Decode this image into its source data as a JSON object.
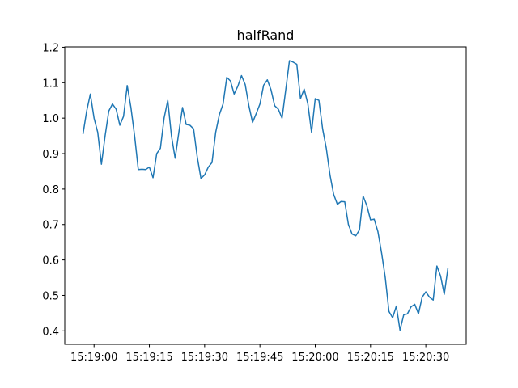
{
  "chart_data": {
    "type": "line",
    "title": "halfRand",
    "x": [
      "15:18:57",
      "15:18:58",
      "15:18:59",
      "15:19:00",
      "15:19:01",
      "15:19:02",
      "15:19:03",
      "15:19:04",
      "15:19:05",
      "15:19:06",
      "15:19:07",
      "15:19:08",
      "15:19:09",
      "15:19:10",
      "15:19:11",
      "15:19:12",
      "15:19:13",
      "15:19:14",
      "15:19:15",
      "15:19:16",
      "15:19:17",
      "15:19:18",
      "15:19:19",
      "15:19:20",
      "15:19:21",
      "15:19:22",
      "15:19:23",
      "15:19:24",
      "15:19:25",
      "15:19:26",
      "15:19:27",
      "15:19:28",
      "15:19:29",
      "15:19:30",
      "15:19:31",
      "15:19:32",
      "15:19:33",
      "15:19:34",
      "15:19:35",
      "15:19:36",
      "15:19:37",
      "15:19:38",
      "15:19:39",
      "15:19:40",
      "15:19:41",
      "15:19:42",
      "15:19:43",
      "15:19:44",
      "15:19:45",
      "15:19:46",
      "15:19:47",
      "15:19:48",
      "15:19:49",
      "15:19:50",
      "15:19:51",
      "15:19:52",
      "15:19:53",
      "15:19:54",
      "15:19:55",
      "15:19:56",
      "15:19:57",
      "15:19:58",
      "15:19:59",
      "15:20:00",
      "15:20:01",
      "15:20:02",
      "15:20:03",
      "15:20:04",
      "15:20:05",
      "15:20:06",
      "15:20:07",
      "15:20:08",
      "15:20:09",
      "15:20:10",
      "15:20:11",
      "15:20:12",
      "15:20:13",
      "15:20:14",
      "15:20:15",
      "15:20:16",
      "15:20:17",
      "15:20:18",
      "15:20:19",
      "15:20:20",
      "15:20:21",
      "15:20:22",
      "15:20:23",
      "15:20:24",
      "15:20:25",
      "15:20:26",
      "15:20:27",
      "15:20:28",
      "15:20:29",
      "15:20:30",
      "15:20:31",
      "15:20:32",
      "15:20:33",
      "15:20:34",
      "15:20:35",
      "15:20:36"
    ],
    "series": [
      {
        "color": "#1f77b4",
        "values": [
          0.955,
          1.02,
          1.068,
          1.0,
          0.96,
          0.87,
          0.95,
          1.02,
          1.04,
          1.025,
          0.98,
          1.005,
          1.092,
          1.03,
          0.95,
          0.855,
          0.856,
          0.855,
          0.862,
          0.832,
          0.9,
          0.915,
          1.0,
          1.05,
          0.95,
          0.887,
          0.96,
          1.03,
          0.982,
          0.98,
          0.97,
          0.89,
          0.83,
          0.84,
          0.862,
          0.875,
          0.96,
          1.01,
          1.04,
          1.115,
          1.105,
          1.068,
          1.09,
          1.12,
          1.095,
          1.035,
          0.988,
          1.013,
          1.04,
          1.093,
          1.108,
          1.08,
          1.035,
          1.025,
          1.0,
          1.08,
          1.162,
          1.158,
          1.152,
          1.055,
          1.082,
          1.04,
          0.96,
          1.055,
          1.05,
          0.97,
          0.915,
          0.84,
          0.785,
          0.757,
          0.765,
          0.764,
          0.7,
          0.673,
          0.668,
          0.685,
          0.78,
          0.753,
          0.713,
          0.715,
          0.68,
          0.62,
          0.55,
          0.455,
          0.437,
          0.47,
          0.402,
          0.445,
          0.448,
          0.468,
          0.475,
          0.448,
          0.495,
          0.51,
          0.495,
          0.487,
          0.583,
          0.555,
          0.503,
          0.577
        ]
      }
    ],
    "xlim": [
      "15:18:52.05",
      "15:20:40.95"
    ],
    "xticks": [
      "15:19:00",
      "15:19:15",
      "15:19:30",
      "15:19:45",
      "15:20:00",
      "15:20:15",
      "15:20:30"
    ],
    "ylim": [
      0.362,
      1.201
    ],
    "yticks": [
      {
        "value": 0.4,
        "label": "0.4"
      },
      {
        "value": 0.5,
        "label": "0.5"
      },
      {
        "value": 0.6,
        "label": "0.6"
      },
      {
        "value": 0.7,
        "label": "0.7"
      },
      {
        "value": 0.8,
        "label": "0.8"
      },
      {
        "value": 0.9,
        "label": "0.9"
      },
      {
        "value": 1.0,
        "label": "1.0"
      },
      {
        "value": 1.1,
        "label": "1.1"
      },
      {
        "value": 1.2,
        "label": "1.2"
      }
    ]
  }
}
